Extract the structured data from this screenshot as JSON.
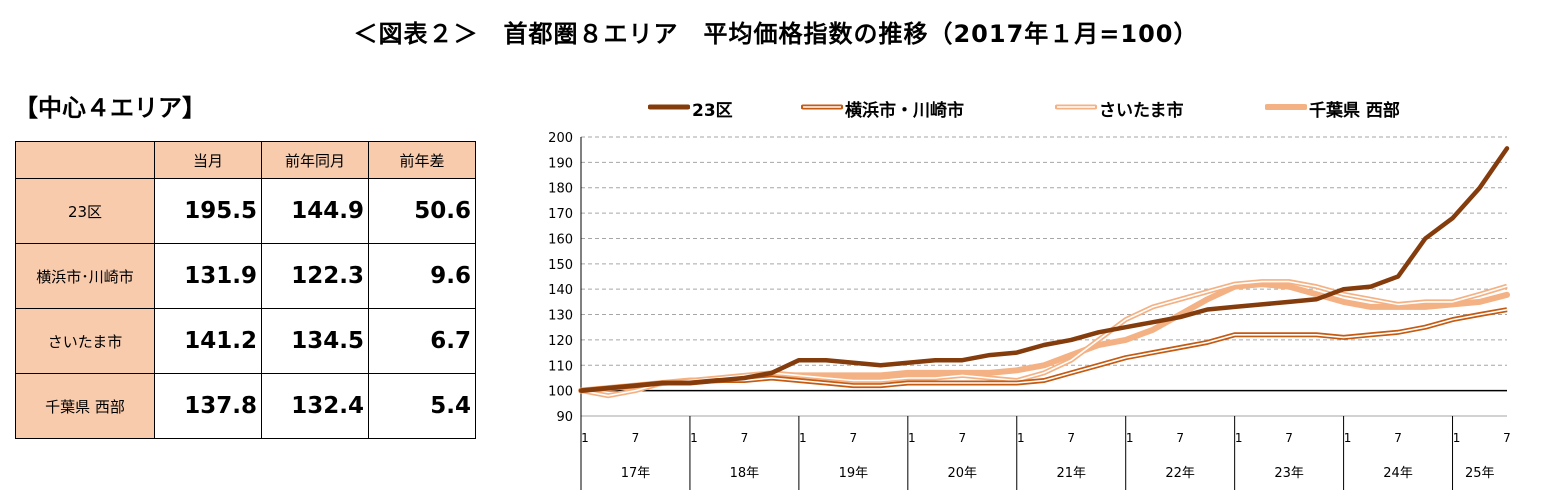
{
  "header": {
    "title": "＜図表２＞　首都圏８エリア　平均価格指数の推移（2017年１月=100）",
    "section_title": "【中心４エリア】"
  },
  "table": {
    "headers": [
      "",
      "当月",
      "前年同月",
      "前年差"
    ],
    "rows": [
      {
        "label": "23区",
        "current": "195.5",
        "prev_year": "144.9",
        "diff": "50.6"
      },
      {
        "label": "横浜市･川崎市",
        "current": "131.9",
        "prev_year": "122.3",
        "diff": "9.6"
      },
      {
        "label": "さいたま市",
        "current": "141.2",
        "prev_year": "134.5",
        "diff": "6.7"
      },
      {
        "label": "千葉県 西部",
        "current": "137.8",
        "prev_year": "132.4",
        "diff": "5.4"
      }
    ]
  },
  "colors": {
    "header_fill": "#f8cbad",
    "s23ku": "#843c0c",
    "yokohama": "#c55a11",
    "saitama": "#f4b183",
    "chiba": "#f4b183",
    "grid": "#a6a6a6"
  },
  "chart_data": {
    "type": "line",
    "ylim": [
      90,
      200
    ],
    "yticks": [
      90,
      100,
      110,
      120,
      130,
      140,
      150,
      160,
      170,
      180,
      190,
      200
    ],
    "grid": "horizontal dashed",
    "legend_position": "top",
    "x_year_labels": [
      "17年",
      "18年",
      "19年",
      "20年",
      "21年",
      "22年",
      "23年",
      "24年",
      "25年"
    ],
    "x_month_labels": [
      "1",
      "7"
    ],
    "x_start": "2017-01",
    "x_end": "2025-07",
    "series": [
      {
        "name": "23区",
        "style": "thick-solid",
        "points": [
          [
            "2017-01",
            100
          ],
          [
            "2017-04",
            101
          ],
          [
            "2017-07",
            102
          ],
          [
            "2017-10",
            103
          ],
          [
            "2018-01",
            103
          ],
          [
            "2018-04",
            104
          ],
          [
            "2018-07",
            105
          ],
          [
            "2018-10",
            107
          ],
          [
            "2019-01",
            112
          ],
          [
            "2019-04",
            112
          ],
          [
            "2019-07",
            111
          ],
          [
            "2019-10",
            110
          ],
          [
            "2020-01",
            111
          ],
          [
            "2020-04",
            112
          ],
          [
            "2020-07",
            112
          ],
          [
            "2020-10",
            114
          ],
          [
            "2021-01",
            115
          ],
          [
            "2021-04",
            118
          ],
          [
            "2021-07",
            120
          ],
          [
            "2021-10",
            123
          ],
          [
            "2022-01",
            125
          ],
          [
            "2022-04",
            127
          ],
          [
            "2022-07",
            129
          ],
          [
            "2022-10",
            132
          ],
          [
            "2023-01",
            133
          ],
          [
            "2023-04",
            134
          ],
          [
            "2023-07",
            135
          ],
          [
            "2023-10",
            136
          ],
          [
            "2024-01",
            140
          ],
          [
            "2024-04",
            141
          ],
          [
            "2024-07",
            145
          ],
          [
            "2024-10",
            160
          ],
          [
            "2025-01",
            168
          ],
          [
            "2025-04",
            180
          ],
          [
            "2025-07",
            195.5
          ]
        ]
      },
      {
        "name": "横浜市・川崎市",
        "style": "double-line",
        "points": [
          [
            "2017-01",
            100
          ],
          [
            "2017-04",
            101
          ],
          [
            "2017-07",
            102
          ],
          [
            "2017-10",
            103
          ],
          [
            "2018-01",
            103
          ],
          [
            "2018-04",
            104
          ],
          [
            "2018-07",
            104
          ],
          [
            "2018-10",
            105
          ],
          [
            "2019-01",
            104
          ],
          [
            "2019-04",
            103
          ],
          [
            "2019-07",
            102
          ],
          [
            "2019-10",
            102
          ],
          [
            "2020-01",
            103
          ],
          [
            "2020-04",
            103
          ],
          [
            "2020-07",
            103
          ],
          [
            "2020-10",
            103
          ],
          [
            "2021-01",
            103
          ],
          [
            "2021-04",
            104
          ],
          [
            "2021-07",
            107
          ],
          [
            "2021-10",
            110
          ],
          [
            "2022-01",
            113
          ],
          [
            "2022-04",
            115
          ],
          [
            "2022-07",
            117
          ],
          [
            "2022-10",
            119
          ],
          [
            "2023-01",
            122
          ],
          [
            "2023-04",
            122
          ],
          [
            "2023-07",
            122
          ],
          [
            "2023-10",
            122
          ],
          [
            "2024-01",
            121
          ],
          [
            "2024-04",
            122
          ],
          [
            "2024-07",
            123
          ],
          [
            "2024-10",
            125
          ],
          [
            "2025-01",
            128
          ],
          [
            "2025-04",
            130
          ],
          [
            "2025-07",
            131.9
          ]
        ]
      },
      {
        "name": "さいたま市",
        "style": "light-double-line",
        "points": [
          [
            "2017-01",
            100
          ],
          [
            "2017-04",
            98
          ],
          [
            "2017-07",
            100
          ],
          [
            "2017-10",
            103
          ],
          [
            "2018-01",
            104
          ],
          [
            "2018-04",
            105
          ],
          [
            "2018-07",
            106
          ],
          [
            "2018-10",
            107
          ],
          [
            "2019-01",
            106
          ],
          [
            "2019-04",
            105
          ],
          [
            "2019-07",
            104
          ],
          [
            "2019-10",
            104
          ],
          [
            "2020-01",
            105
          ],
          [
            "2020-04",
            105
          ],
          [
            "2020-07",
            106
          ],
          [
            "2020-10",
            105
          ],
          [
            "2021-01",
            104
          ],
          [
            "2021-04",
            107
          ],
          [
            "2021-07",
            112
          ],
          [
            "2021-10",
            120
          ],
          [
            "2022-01",
            128
          ],
          [
            "2022-04",
            133
          ],
          [
            "2022-07",
            136
          ],
          [
            "2022-10",
            139
          ],
          [
            "2023-01",
            142
          ],
          [
            "2023-04",
            143
          ],
          [
            "2023-07",
            143
          ],
          [
            "2023-10",
            141
          ],
          [
            "2024-01",
            138
          ],
          [
            "2024-04",
            136
          ],
          [
            "2024-07",
            134
          ],
          [
            "2024-10",
            135
          ],
          [
            "2025-01",
            135
          ],
          [
            "2025-04",
            138
          ],
          [
            "2025-07",
            141.2
          ]
        ]
      },
      {
        "name": "千葉県 西部",
        "style": "light-thick",
        "points": [
          [
            "2017-01",
            100
          ],
          [
            "2017-04",
            101
          ],
          [
            "2017-07",
            102
          ],
          [
            "2017-10",
            103
          ],
          [
            "2018-01",
            104
          ],
          [
            "2018-04",
            104
          ],
          [
            "2018-07",
            105
          ],
          [
            "2018-10",
            106
          ],
          [
            "2019-01",
            106
          ],
          [
            "2019-04",
            106
          ],
          [
            "2019-07",
            106
          ],
          [
            "2019-10",
            106
          ],
          [
            "2020-01",
            107
          ],
          [
            "2020-04",
            107
          ],
          [
            "2020-07",
            107
          ],
          [
            "2020-10",
            107
          ],
          [
            "2021-01",
            108
          ],
          [
            "2021-04",
            110
          ],
          [
            "2021-07",
            114
          ],
          [
            "2021-10",
            118
          ],
          [
            "2022-01",
            120
          ],
          [
            "2022-04",
            124
          ],
          [
            "2022-07",
            130
          ],
          [
            "2022-10",
            136
          ],
          [
            "2023-01",
            141
          ],
          [
            "2023-04",
            142
          ],
          [
            "2023-07",
            141
          ],
          [
            "2023-10",
            138
          ],
          [
            "2024-01",
            135
          ],
          [
            "2024-04",
            133
          ],
          [
            "2024-07",
            133
          ],
          [
            "2024-10",
            133
          ],
          [
            "2025-01",
            134
          ],
          [
            "2025-04",
            135
          ],
          [
            "2025-07",
            137.8
          ]
        ]
      }
    ]
  }
}
